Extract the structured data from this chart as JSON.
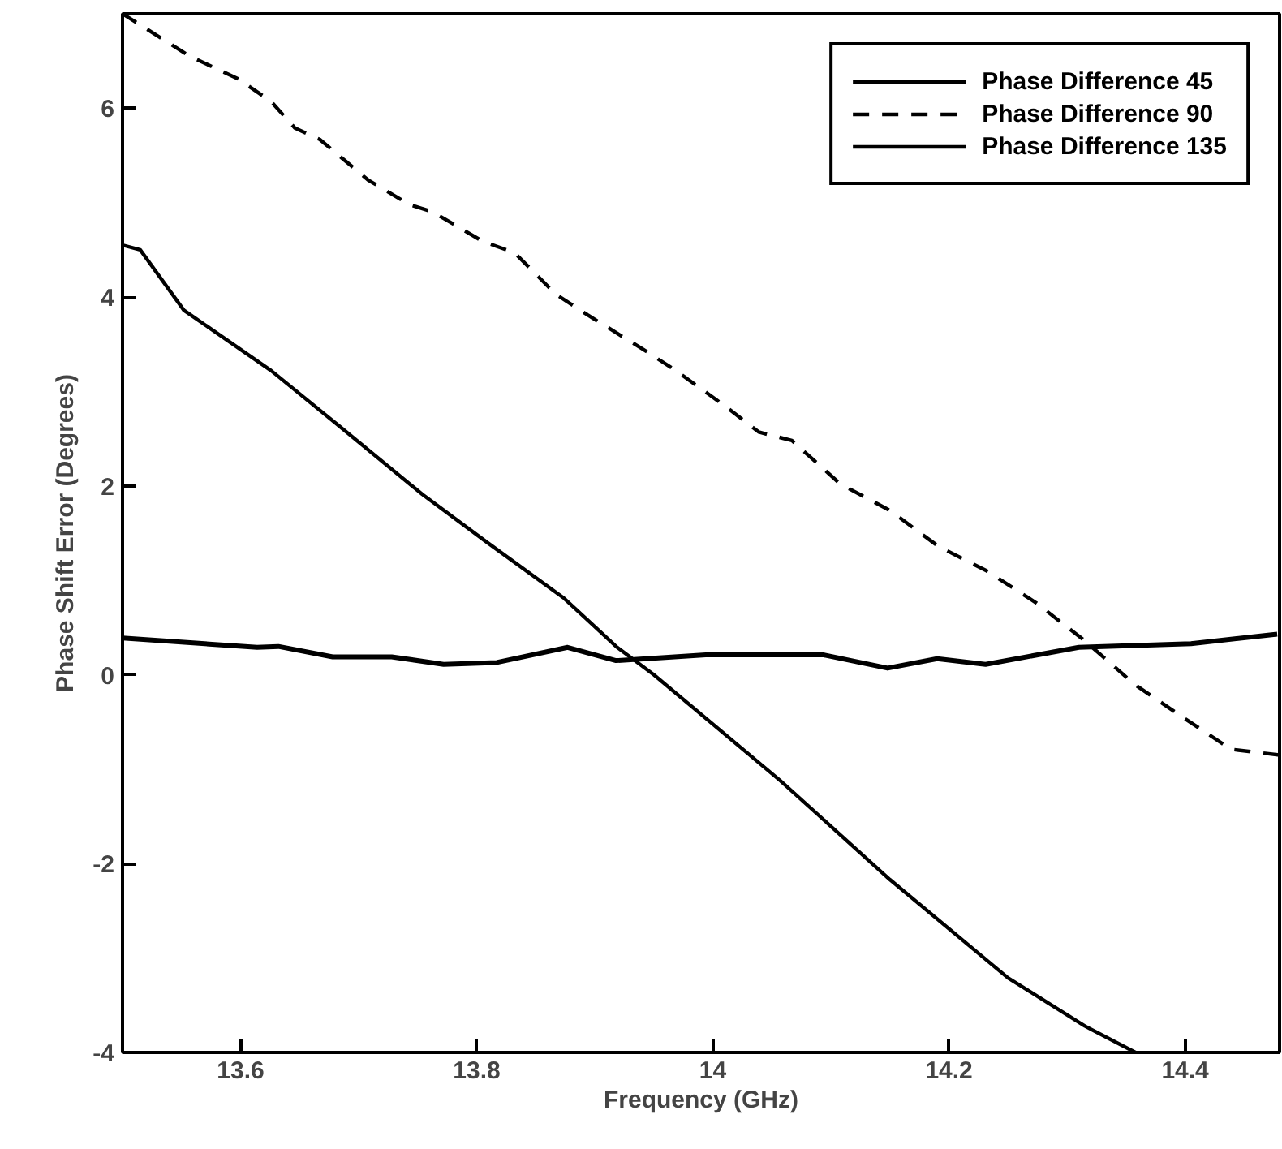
{
  "chart_data": {
    "type": "line",
    "xlabel": "Frequency (GHz)",
    "ylabel": "Phase Shift Error (Degrees)",
    "xlim": [
      13.5,
      14.48
    ],
    "ylim": [
      -4,
      7
    ],
    "xticks": [
      13.6,
      13.8,
      14,
      14.2,
      14.4
    ],
    "yticks": [
      -4,
      -2,
      0,
      2,
      4,
      6
    ],
    "grid": false,
    "legend": "top right",
    "marker": "none",
    "series": [
      {
        "name": "Phase Difference 45",
        "color": "#000000",
        "line_style": "solid",
        "x": [
          13.5,
          13.614,
          13.632,
          13.678,
          13.728,
          13.772,
          13.817,
          13.877,
          13.918,
          13.994,
          14.094,
          14.148,
          14.19,
          14.231,
          14.31,
          14.405,
          14.478
        ],
        "values": [
          0.39,
          0.29,
          0.3,
          0.19,
          0.19,
          0.11,
          0.13,
          0.29,
          0.15,
          0.21,
          0.21,
          0.07,
          0.17,
          0.11,
          0.29,
          0.33,
          0.43
        ]
      },
      {
        "name": "Phase Difference 90",
        "color": "#000000",
        "line_style": "dashed",
        "x": [
          13.5,
          13.557,
          13.598,
          13.626,
          13.646,
          13.667,
          13.708,
          13.743,
          13.763,
          13.805,
          13.832,
          13.867,
          13.894,
          13.943,
          13.97,
          14.012,
          14.039,
          14.067,
          14.108,
          14.15,
          14.191,
          14.232,
          14.274,
          14.315,
          14.357,
          14.398,
          14.439,
          14.48
        ],
        "values": [
          7.0,
          6.55,
          6.31,
          6.07,
          5.79,
          5.67,
          5.24,
          4.98,
          4.9,
          4.59,
          4.47,
          4.03,
          3.81,
          3.43,
          3.21,
          2.83,
          2.57,
          2.48,
          2.02,
          1.74,
          1.36,
          1.1,
          0.76,
          0.36,
          -0.1,
          -0.45,
          -0.79,
          -0.85
        ]
      },
      {
        "name": "Phase Difference 135",
        "color": "#000000",
        "line_style": "solid",
        "x": [
          13.5,
          13.515,
          13.552,
          13.626,
          13.681,
          13.754,
          13.809,
          13.874,
          13.919,
          13.95,
          14.057,
          14.15,
          14.25,
          14.315,
          14.358
        ],
        "values": [
          4.55,
          4.5,
          3.86,
          3.22,
          2.66,
          1.91,
          1.4,
          0.81,
          0.29,
          0.0,
          -1.12,
          -2.17,
          -3.21,
          -3.72,
          -4.0
        ]
      }
    ]
  }
}
